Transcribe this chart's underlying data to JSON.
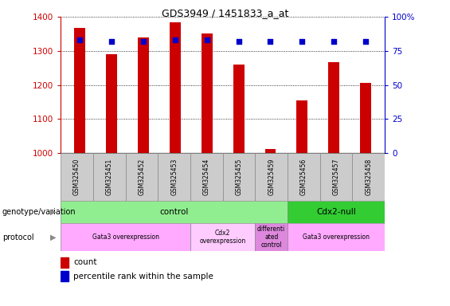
{
  "title": "GDS3949 / 1451833_a_at",
  "samples": [
    "GSM325450",
    "GSM325451",
    "GSM325452",
    "GSM325453",
    "GSM325454",
    "GSM325455",
    "GSM325459",
    "GSM325456",
    "GSM325457",
    "GSM325458"
  ],
  "counts": [
    1367,
    1290,
    1340,
    1385,
    1352,
    1260,
    1012,
    1155,
    1268,
    1205
  ],
  "percentile_ranks": [
    83,
    82,
    82,
    83,
    83,
    82,
    82,
    82,
    82,
    82
  ],
  "ylim_left": [
    1000,
    1400
  ],
  "ylim_right": [
    0,
    100
  ],
  "yticks_left": [
    1000,
    1100,
    1200,
    1300,
    1400
  ],
  "yticks_right": [
    0,
    25,
    50,
    75,
    100
  ],
  "bar_color": "#cc0000",
  "dot_color": "#0000cc",
  "left_tick_color": "#cc0000",
  "right_tick_color": "#0000cc",
  "background_sample": "#cccccc",
  "genotype_groups": [
    {
      "label": "control",
      "start": 0,
      "end": 6,
      "color": "#90ee90"
    },
    {
      "label": "Cdx2-null",
      "start": 7,
      "end": 9,
      "color": "#33cc33"
    }
  ],
  "protocol_groups": [
    {
      "label": "Gata3 overexpression",
      "start": 0,
      "end": 3,
      "color": "#ffaaff"
    },
    {
      "label": "Cdx2\noverexpression",
      "start": 4,
      "end": 5,
      "color": "#ffccff"
    },
    {
      "label": "differenti\nated\ncontrol",
      "start": 6,
      "end": 6,
      "color": "#dd88dd"
    },
    {
      "label": "Gata3 overexpression",
      "start": 7,
      "end": 9,
      "color": "#ffaaff"
    }
  ],
  "arrow_label_text_genotype": "genotype/variation",
  "arrow_label_text_protocol": "protocol"
}
